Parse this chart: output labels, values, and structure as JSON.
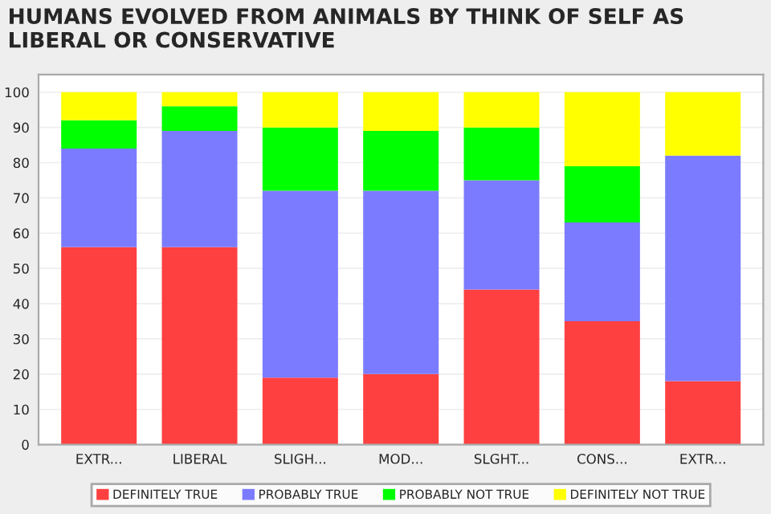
{
  "chart_data": {
    "type": "bar",
    "stacked": true,
    "title": "HUMANS EVOLVED FROM ANIMALS BY THINK OF SELF AS\nLIBERAL OR CONSERVATIVE",
    "categories": [
      "EXTR...",
      "LIBERAL",
      "SLIGH...",
      "MOD...",
      "SLGHT...",
      "CONS...",
      "EXTR..."
    ],
    "series": [
      {
        "name": "DEFINITELY TRUE",
        "color": "#ff4040",
        "values": [
          56,
          56,
          19,
          20,
          44,
          35,
          18
        ]
      },
      {
        "name": "PROBABLY TRUE",
        "color": "#7b7bff",
        "values": [
          28,
          33,
          53,
          52,
          31,
          28,
          64
        ]
      },
      {
        "name": "PROBABLY NOT TRUE",
        "color": "#00ff00",
        "values": [
          8,
          7,
          18,
          17,
          15,
          16,
          0
        ]
      },
      {
        "name": "DEFINITELY NOT TRUE",
        "color": "#ffff00",
        "values": [
          8,
          4,
          10,
          11,
          10,
          21,
          18
        ]
      }
    ],
    "ylim": [
      0,
      105
    ],
    "yticks": [
      0,
      10,
      20,
      30,
      40,
      50,
      60,
      70,
      80,
      90,
      100
    ],
    "grid": "y",
    "legend": "bottom"
  }
}
